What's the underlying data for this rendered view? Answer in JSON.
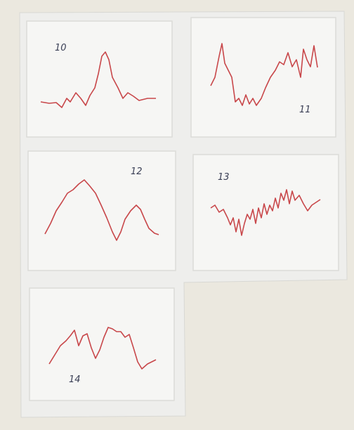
{
  "panels": [
    {
      "label": "10"
    },
    {
      "label": "11"
    },
    {
      "label": "12"
    },
    {
      "label": "13"
    },
    {
      "label": "14"
    }
  ]
}
